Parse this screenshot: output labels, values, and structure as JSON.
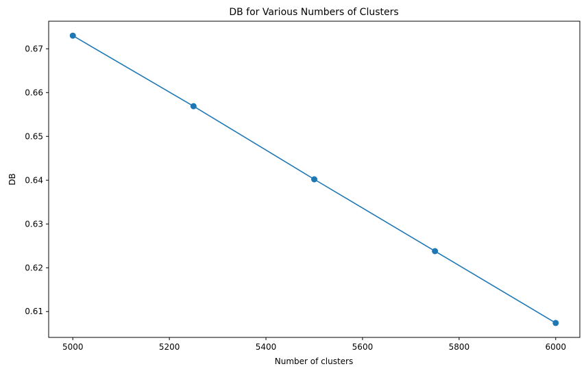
{
  "chart_data": {
    "type": "line",
    "title": "DB for Various Numbers of Clusters",
    "xlabel": "Number of clusters",
    "ylabel": "DB",
    "x": [
      5000,
      5250,
      5500,
      5750,
      6000
    ],
    "series": [
      {
        "values": [
          0.673,
          0.6569,
          0.6402,
          0.6238,
          0.6074
        ],
        "color": "#1f77b4",
        "marker": "circle"
      }
    ],
    "xlim": [
      4950,
      6050
    ],
    "ylim": [
      0.6041,
      0.6763
    ],
    "xticks": [
      5000,
      5200,
      5400,
      5600,
      5800,
      6000
    ],
    "xtick_labels": [
      "5000",
      "5200",
      "5400",
      "5600",
      "5800",
      "6000"
    ],
    "yticks": [
      0.61,
      0.62,
      0.63,
      0.64,
      0.65,
      0.66,
      0.67
    ],
    "ytick_labels": [
      "0.61",
      "0.62",
      "0.63",
      "0.64",
      "0.65",
      "0.66",
      "0.67"
    ],
    "grid": false,
    "legend": false
  }
}
